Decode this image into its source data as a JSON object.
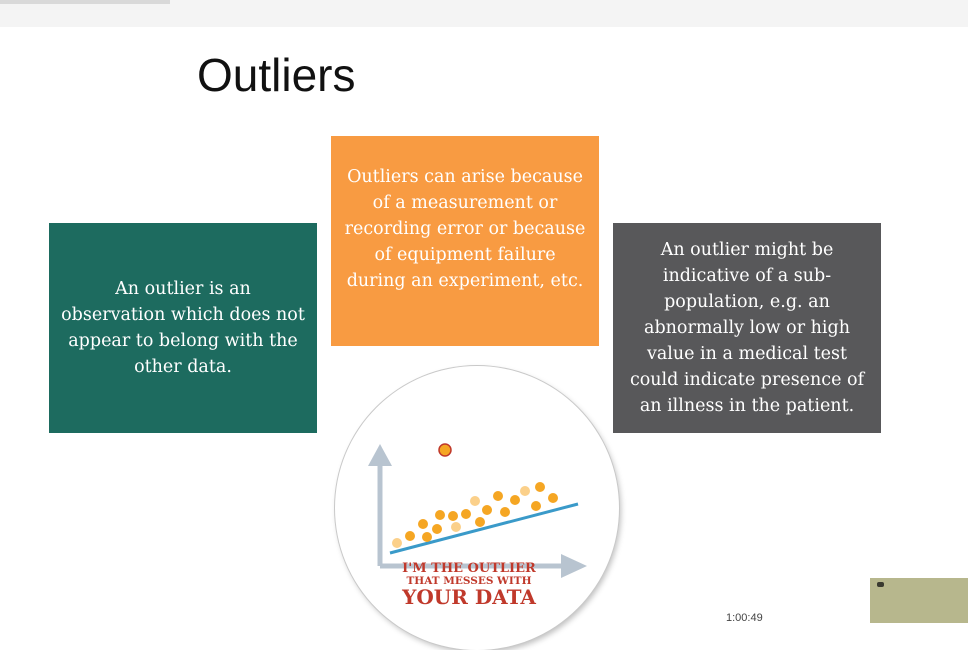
{
  "slide": {
    "title": "Outliers",
    "box_left": "An outlier is an observation which does not appear to belong with the other data.",
    "box_mid": "Outliers can arise because of a measurement or recording error or because of equipment failure during an experiment, etc.",
    "box_right": "An outlier might be indicative of a sub-population, e.g. an abnormally low or high value in a medical test could indicate presence of an illness in the patient."
  },
  "illustration": {
    "line1": "I'M THE OUTLIER",
    "line2": "THAT MESSES WITH",
    "line3": "YOUR DATA"
  },
  "colors": {
    "teal": "#1d6b5f",
    "orange": "#f89b42",
    "gray": "#58585a",
    "dots": "#f5a623",
    "trend": "#3a9ac9",
    "caption": "#c0392b"
  },
  "overlay": {
    "clock_partial": "1:00:49"
  }
}
